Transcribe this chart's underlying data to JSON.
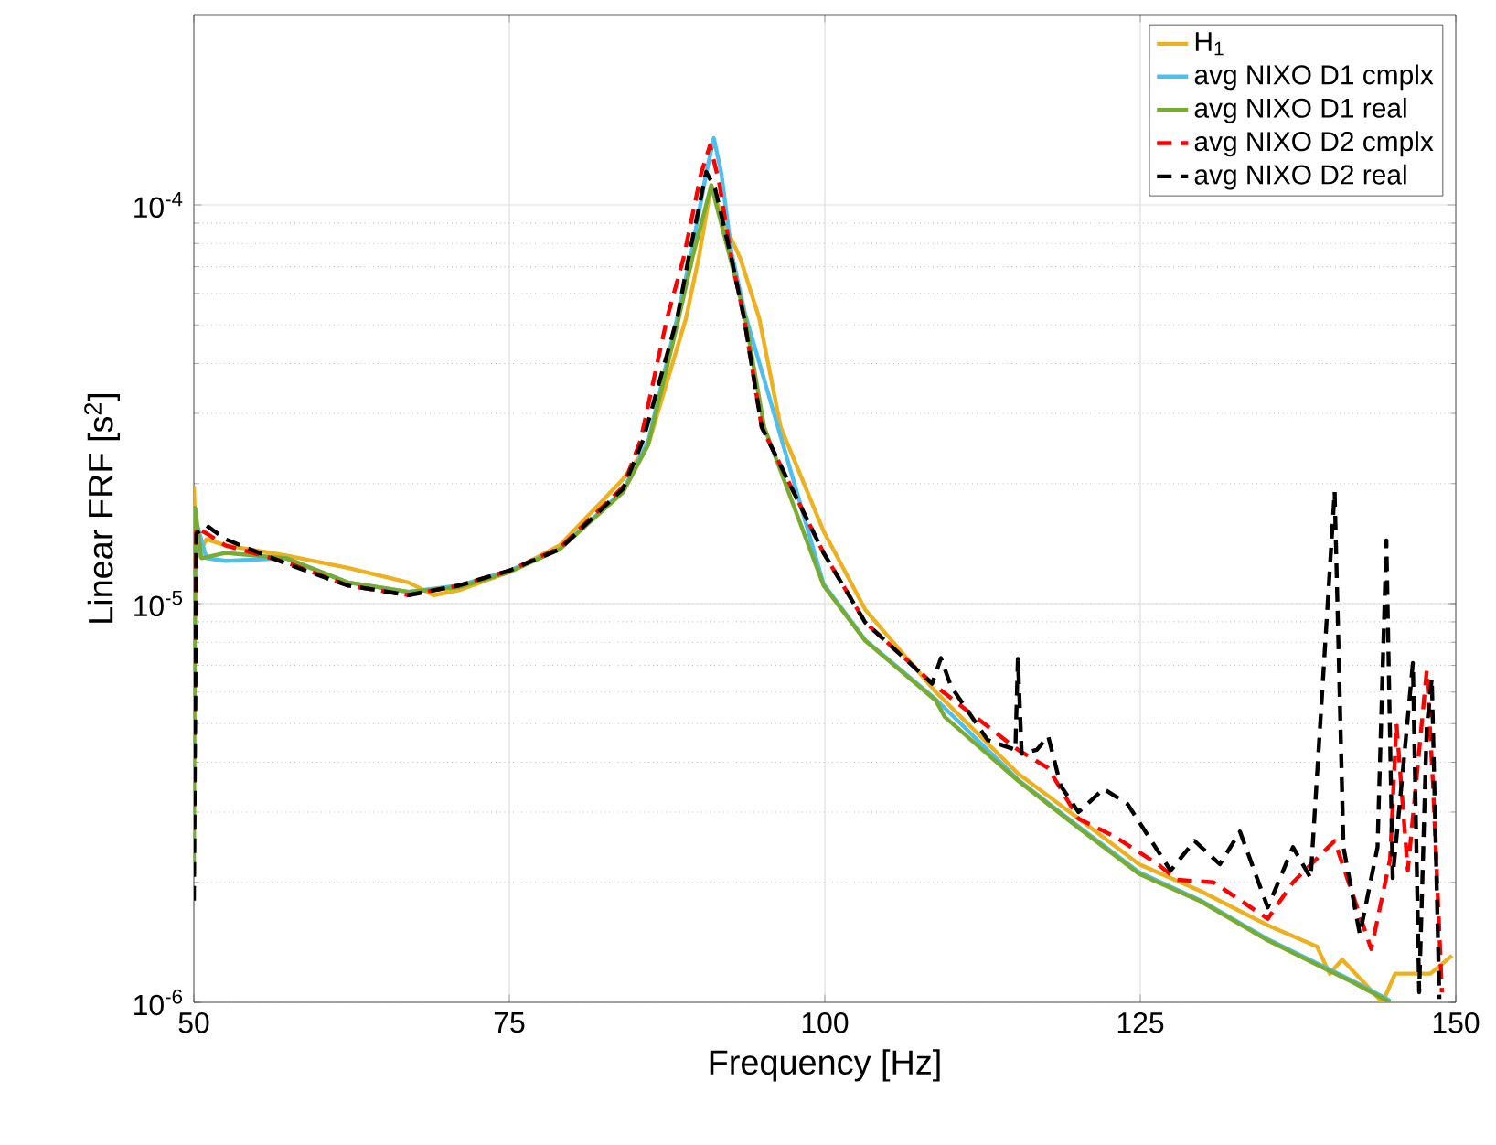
{
  "chart_data": {
    "type": "line",
    "xlabel": "Frequency [Hz]",
    "ylabel": "Linear FRF [s$^{2}$]",
    "log": "y",
    "grid": true,
    "legend": "top right",
    "xlim": [
      50,
      150
    ],
    "xticks": [
      50,
      75,
      100,
      125,
      150
    ],
    "ylim": [
      1e-06,
      0.0003
    ],
    "yticks": [
      {
        "value": 1e-06,
        "label": "10$^{-6}$"
      },
      {
        "value": 1e-05,
        "label": "10$^{-5}$"
      },
      {
        "value": 0.0001,
        "label": "10$^{-4}$"
      }
    ],
    "series": [
      {
        "name": "H$_{1}$",
        "color": "#edb120",
        "line_style": "solid",
        "x": [
          50,
          50.2,
          51,
          52.5,
          57.3,
          62.2,
          67,
          69,
          71,
          75,
          79,
          84,
          86,
          89,
          90,
          91,
          92,
          93.3,
          94.8,
          96.5,
          99.9,
          103.2,
          108.8,
          115.3,
          120.1,
          124.9,
          129.8,
          135.1,
          139,
          140,
          141,
          144.2,
          145.2,
          148,
          149.7
        ],
        "values": [
          1.97e-05,
          1.3e-05,
          1.45e-05,
          1.4e-05,
          1.32e-05,
          1.23e-05,
          1.13e-05,
          1.05e-05,
          1.08e-05,
          1.2e-05,
          1.4e-05,
          2.05e-05,
          2.5e-05,
          5.2e-05,
          7.35e-05,
          0.000112,
          9e-05,
          7.35e-05,
          5.2e-05,
          2.77e-05,
          1.52e-05,
          9.66e-06,
          6e-06,
          3.75e-06,
          2.89e-06,
          2.22e-06,
          1.9e-06,
          1.56e-06,
          1.38e-06,
          1.18e-06,
          1.28e-06,
          1e-06,
          1.18e-06,
          1.18e-06,
          1.31e-06
        ]
      },
      {
        "name": "avg NIXO D1 cmplx",
        "color": "#4dbeee",
        "line_style": "solid",
        "x": [
          50,
          50.2,
          51,
          52.5,
          57.3,
          62.2,
          67,
          71,
          75,
          79,
          84,
          86,
          88.3,
          89.5,
          90.6,
          91.2,
          91.8,
          92.6,
          93.7,
          95.1,
          99.9,
          103.2,
          108.8,
          115.3,
          120.1,
          124.9,
          129.8,
          135.1,
          139.5,
          141.9,
          144.8
        ],
        "values": [
          5.7e-06,
          1.6e-05,
          1.3e-05,
          1.28e-05,
          1.3e-05,
          1.13e-05,
          1.07e-05,
          1.11e-05,
          1.21e-05,
          1.37e-05,
          1.92e-05,
          2.55e-05,
          5.2e-05,
          7.8e-05,
          0.00012,
          0.000147,
          0.00012,
          7.6e-05,
          5.3e-05,
          null,
          1.12e-05,
          8.1e-06,
          5.75e-06,
          3.62e-06,
          2.76e-06,
          2.12e-06,
          1.8e-06,
          1.44e-06,
          1.23e-06,
          1.13e-06,
          1.01e-06
        ]
      },
      {
        "name": "avg NIXO D1 real",
        "color": "#77ac30",
        "line_style": "solid",
        "x": [
          50,
          50.1,
          50.6,
          52.5,
          57.3,
          62.2,
          67,
          71,
          75,
          79,
          84,
          86,
          88.3,
          89.5,
          91,
          92.5,
          93.7,
          95.2,
          99.9,
          103.2,
          108.8,
          109.5,
          115.3,
          120.1,
          124.9,
          129.8,
          135.1,
          139.5,
          141.9,
          144.8
        ],
        "values": [
          2.1e-06,
          1.74e-05,
          1.3e-05,
          1.34e-05,
          1.3e-05,
          1.13e-05,
          1.07e-05,
          1.1e-05,
          1.2e-05,
          1.37e-05,
          1.9e-05,
          2.5e-05,
          5e-05,
          7.35e-05,
          0.000112,
          7.35e-05,
          5.2e-05,
          2.77e-05,
          1.11e-05,
          8.07e-06,
          5.71e-06,
          5.2e-06,
          3.6e-06,
          2.74e-06,
          2.1e-06,
          1.79e-06,
          1.43e-06,
          1.22e-06,
          1.12e-06,
          1e-06
        ]
      },
      {
        "name": "avg NIXO D2 cmplx",
        "color": "#ff0000",
        "line_style": "dashed",
        "x": [
          50,
          50.2,
          51,
          52.5,
          57.3,
          62.2,
          67,
          71,
          75,
          79,
          84,
          85.4,
          87.5,
          88.8,
          90.2,
          90.9,
          91.6,
          92.6,
          93.6,
          95,
          99.9,
          103.2,
          108.8,
          115.3,
          117.7,
          120.1,
          123,
          126.4,
          127.9,
          130.8,
          135.1,
          137.1,
          140.4,
          143.3,
          144.8,
          145.3,
          146.2,
          147.7,
          148.2,
          148.9
        ],
        "values": [
          2.7e-06,
          1.55e-05,
          1.5e-05,
          1.4e-05,
          1.27e-05,
          1.11e-05,
          1.05e-05,
          1.11e-05,
          1.21e-05,
          1.38e-05,
          1.96e-05,
          2.57e-05,
          5.2e-05,
          7.35e-05,
          0.00012,
          0.000141,
          0.000115,
          7.35e-05,
          5.2e-05,
          2.77e-05,
          1.34e-05,
          8.97e-06,
          6.2e-06,
          4.3e-06,
          3.87e-06,
          2.89e-06,
          2.6e-06,
          2.22e-06,
          2.03e-06,
          2e-06,
          1.62e-06,
          2e-06,
          2.54e-06,
          1.36e-06,
          2.29e-06,
          5e-06,
          2.14e-06,
          6.8e-06,
          3.49e-06,
          1.06e-06
        ]
      },
      {
        "name": "avg NIXO D2 real",
        "color": "#000000",
        "line_style": "dashed",
        "x": [
          50,
          50.2,
          51,
          52.5,
          57.3,
          62.2,
          67,
          71,
          75,
          79,
          84,
          85.6,
          88.3,
          89.2,
          90.6,
          91.3,
          92.6,
          93.6,
          95,
          99.9,
          103.2,
          108.5,
          109.2,
          110,
          112.9,
          115.1,
          115.3,
          115.6,
          116.8,
          117.7,
          118.7,
          120.1,
          122.1,
          124,
          127.4,
          129.3,
          131.3,
          132.9,
          135.1,
          137.1,
          138.5,
          140.4,
          141.1,
          142.4,
          143.8,
          144.5,
          145,
          145.9,
          146.6,
          147.1,
          147.7,
          148.1,
          148.7
        ],
        "values": [
          1.8e-06,
          1.5e-05,
          1.57e-05,
          1.45e-05,
          1.26e-05,
          1.11e-05,
          1.05e-05,
          1.11e-05,
          1.21e-05,
          1.37e-05,
          1.94e-05,
          2.57e-05,
          5.2e-05,
          7.35e-05,
          0.000121,
          0.00011,
          7.35e-05,
          5.2e-05,
          2.77e-05,
          1.34e-05,
          8.97e-06,
          6.3e-06,
          7.3e-06,
          6.2e-06,
          4.55e-06,
          4.3e-06,
          7.27e-06,
          4.2e-06,
          4.3e-06,
          4.65e-06,
          3.49e-06,
          3e-06,
          3.43e-06,
          3.14e-06,
          2.14e-06,
          2.54e-06,
          2.22e-06,
          2.68e-06,
          1.73e-06,
          2.45e-06,
          2.05e-06,
          1.91e-05,
          2.45e-06,
          1.48e-06,
          2.45e-06,
          1.44e-05,
          2.05e-06,
          4.1e-06,
          7.1e-06,
          1.06e-06,
          4.9e-06,
          6.5e-06,
          1.02e-06
        ]
      }
    ]
  }
}
